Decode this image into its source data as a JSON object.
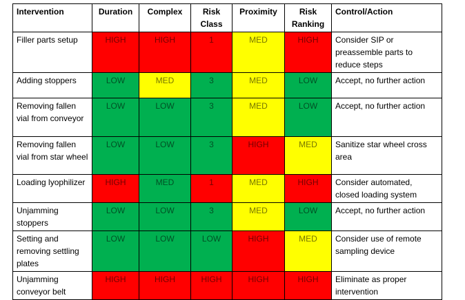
{
  "table": {
    "header": [
      "Intervention",
      "Duration",
      "Complex",
      "Risk Class",
      "Proximity",
      "Risk Ranking",
      "Control/Action"
    ],
    "rows": [
      [
        "Filler parts setup",
        {
          "text": "HIGH",
          "color": "#ff0000"
        },
        {
          "text": "HIGH",
          "color": "#ff0000"
        },
        {
          "text": "1",
          "color": "#ff0000"
        },
        {
          "text": "MED",
          "color": "#ffff00"
        },
        {
          "text": "HIGH",
          "color": "#ff0000"
        },
        "Consider SIP or preassemble parts to reduce steps"
      ],
      [
        "Adding stoppers",
        {
          "text": "LOW",
          "color": "#00b050"
        },
        {
          "text": "MED",
          "color": "#ffff00"
        },
        {
          "text": "3",
          "color": "#00b050"
        },
        {
          "text": "MED",
          "color": "#ffff00"
        },
        {
          "text": "LOW",
          "color": "#00b050"
        },
        "Accept, no further action"
      ],
      [
        "Removing fallen vial from conveyor",
        {
          "text": "LOW",
          "color": "#00b050"
        },
        {
          "text": "LOW",
          "color": "#00b050"
        },
        {
          "text": "3",
          "color": "#00b050"
        },
        {
          "text": "MED",
          "color": "#ffff00"
        },
        {
          "text": "LOW",
          "color": "#00b050"
        },
        "Accept, no further action"
      ],
      [
        "Removing fallen vial from star wheel",
        {
          "text": "LOW",
          "color": "#00b050"
        },
        {
          "text": "LOW",
          "color": "#00b050"
        },
        {
          "text": "3",
          "color": "#00b050"
        },
        {
          "text": "HIGH",
          "color": "#ff0000"
        },
        {
          "text": "MED",
          "color": "#ffff00"
        },
        "Sanitize star wheel cross area"
      ],
      [
        "Loading lyophilizer",
        {
          "text": "HIGH",
          "color": "#ff0000"
        },
        {
          "text": "MED",
          "color": "#00b050"
        },
        {
          "text": "1",
          "color": "#ff0000"
        },
        {
          "text": "MED",
          "color": "#ffff00"
        },
        {
          "text": "HIGH",
          "color": "#ff0000"
        },
        "Consider automated, closed loading system"
      ],
      [
        "Unjamming stoppers",
        {
          "text": "LOW",
          "color": "#00b050"
        },
        {
          "text": "LOW",
          "color": "#00b050"
        },
        {
          "text": "3",
          "color": "#00b050"
        },
        {
          "text": "MED",
          "color": "#ffff00"
        },
        {
          "text": "LOW",
          "color": "#00b050"
        },
        "Accept, no further action"
      ],
      [
        "Setting and removing settling plates",
        {
          "text": "LOW",
          "color": "#00b050"
        },
        {
          "text": "LOW",
          "color": "#00b050"
        },
        {
          "text": "LOW",
          "color": "#00b050"
        },
        {
          "text": "HIGH",
          "color": "#ff0000"
        },
        {
          "text": "MED",
          "color": "#ffff00"
        },
        "Consider use of remote sampling device"
      ],
      [
        "Unjamming conveyor belt",
        {
          "text": "HIGH",
          "color": "#ff0000"
        },
        {
          "text": "HIGH",
          "color": "#ff0000"
        },
        {
          "text": "HIGH",
          "color": "#ff0000"
        },
        {
          "text": "HIGH",
          "color": "#ff0000"
        },
        {
          "text": "HIGH",
          "color": "#ff0000"
        },
        "Eliminate as proper intervention"
      ]
    ]
  }
}
